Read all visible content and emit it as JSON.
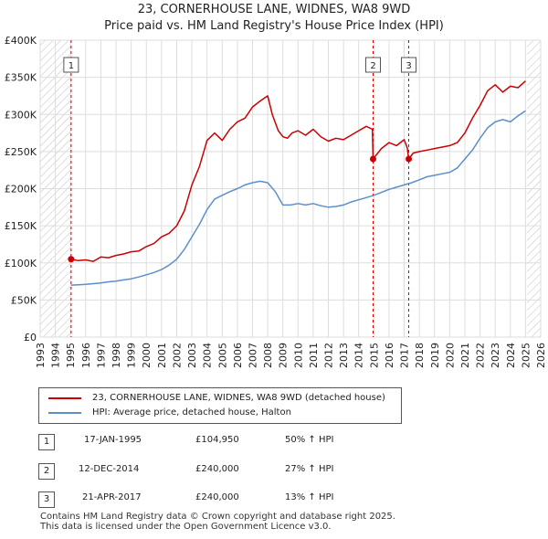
{
  "title_line1": "23, CORNERHOUSE LANE, WIDNES, WA8 9WD",
  "title_line2": "Price paid vs. HM Land Registry's House Price Index (HPI)",
  "legend": {
    "series1": "23, CORNERHOUSE LANE, WIDNES, WA8 9WD (detached house)",
    "series2": "HPI: Average price, detached house, Halton"
  },
  "sales": [
    {
      "num": "1",
      "date": "17-JAN-1995",
      "price": "£104,950",
      "hpi": "50% ↑ HPI"
    },
    {
      "num": "2",
      "date": "12-DEC-2014",
      "price": "£240,000",
      "hpi": "27% ↑ HPI"
    },
    {
      "num": "3",
      "date": "21-APR-2017",
      "price": "£240,000",
      "hpi": "13% ↑ HPI"
    }
  ],
  "footer": {
    "line1": "Contains HM Land Registry data © Crown copyright and database right 2025.",
    "line2": "This data is licensed under the Open Government Licence v3.0."
  },
  "colors": {
    "property": "#cc0000",
    "hpi": "#5b8fcc",
    "grid": "#dddddd",
    "vline": "#cc0000"
  },
  "chart_data": {
    "type": "line",
    "title": "23, CORNERHOUSE LANE, WIDNES, WA8 9WD",
    "subtitle": "Price paid vs. HM Land Registry's House Price Index (HPI)",
    "xlabel": "",
    "ylabel": "",
    "xlim": [
      1993,
      2026
    ],
    "ylim": [
      0,
      400000
    ],
    "x_ticks": [
      1993,
      1994,
      1995,
      1996,
      1997,
      1998,
      1999,
      2000,
      2001,
      2002,
      2003,
      2004,
      2005,
      2006,
      2007,
      2008,
      2009,
      2010,
      2011,
      2012,
      2013,
      2014,
      2015,
      2016,
      2017,
      2018,
      2019,
      2020,
      2021,
      2022,
      2023,
      2024,
      2025,
      2026
    ],
    "y_ticks": [
      {
        "v": 0,
        "label": "£0"
      },
      {
        "v": 50000,
        "label": "£50K"
      },
      {
        "v": 100000,
        "label": "£100K"
      },
      {
        "v": 150000,
        "label": "£150K"
      },
      {
        "v": 200000,
        "label": "£200K"
      },
      {
        "v": 250000,
        "label": "£250K"
      },
      {
        "v": 300000,
        "label": "£300K"
      },
      {
        "v": 350000,
        "label": "£350K"
      },
      {
        "v": 400000,
        "label": "£400K"
      }
    ],
    "hatched_ranges": [
      [
        1993,
        1995.04
      ],
      [
        2025.1,
        2026
      ]
    ],
    "sale_markers": [
      {
        "label": "1",
        "x": 1995.04,
        "y": 104950
      },
      {
        "label": "2",
        "x": 2014.95,
        "y": 240000
      },
      {
        "label": "3",
        "x": 2017.3,
        "y": 240000
      }
    ],
    "series": [
      {
        "name": "23, CORNERHOUSE LANE, WIDNES, WA8 9WD (detached house)",
        "color": "#cc0000",
        "x": [
          1995.04,
          1995.5,
          1996,
          1996.5,
          1997,
          1997.5,
          1998,
          1998.5,
          1999,
          1999.5,
          2000,
          2000.5,
          2001,
          2001.5,
          2002,
          2002.5,
          2003,
          2003.5,
          2004,
          2004.5,
          2005,
          2005.5,
          2006,
          2006.5,
          2007,
          2007.5,
          2008,
          2008.3,
          2008.7,
          2009,
          2009.3,
          2009.6,
          2010,
          2010.5,
          2011,
          2011.5,
          2012,
          2012.5,
          2013,
          2013.5,
          2014,
          2014.5,
          2014.9,
          2014.95,
          2015.5,
          2016,
          2016.5,
          2017,
          2017.2,
          2017.3,
          2017.6,
          2018,
          2018.5,
          2019,
          2019.5,
          2020,
          2020.5,
          2021,
          2021.5,
          2022,
          2022.5,
          2023,
          2023.5,
          2024,
          2024.5,
          2025
        ],
        "y": [
          104950,
          103000,
          104000,
          102000,
          108000,
          107000,
          110000,
          112000,
          115000,
          116000,
          122000,
          126000,
          135000,
          140000,
          150000,
          170000,
          205000,
          230000,
          265000,
          275000,
          265000,
          280000,
          290000,
          295000,
          310000,
          318000,
          325000,
          300000,
          278000,
          270000,
          268000,
          275000,
          278000,
          272000,
          280000,
          270000,
          264000,
          268000,
          266000,
          272000,
          278000,
          284000,
          280000,
          240000,
          254000,
          262000,
          258000,
          266000,
          255000,
          240000,
          248000,
          250000,
          252000,
          254000,
          256000,
          258000,
          262000,
          275000,
          295000,
          312000,
          332000,
          340000,
          330000,
          338000,
          336000,
          345000
        ]
      },
      {
        "name": "HPI: Average price, detached house, Halton",
        "color": "#5b8fcc",
        "x": [
          1995.04,
          1995.5,
          1996,
          1996.5,
          1997,
          1997.5,
          1998,
          1998.5,
          1999,
          1999.5,
          2000,
          2000.5,
          2001,
          2001.5,
          2002,
          2002.5,
          2003,
          2003.5,
          2004,
          2004.5,
          2005,
          2005.5,
          2006,
          2006.5,
          2007,
          2007.5,
          2008,
          2008.5,
          2009,
          2009.5,
          2010,
          2010.5,
          2011,
          2011.5,
          2012,
          2012.5,
          2013,
          2013.5,
          2014,
          2014.5,
          2015,
          2015.5,
          2016,
          2016.5,
          2017,
          2017.5,
          2018,
          2018.5,
          2019,
          2019.5,
          2020,
          2020.5,
          2021,
          2021.5,
          2022,
          2022.5,
          2023,
          2023.5,
          2024,
          2024.5,
          2025
        ],
        "y": [
          70000,
          70500,
          71000,
          72000,
          73000,
          74500,
          75500,
          77000,
          78500,
          81000,
          84000,
          87000,
          91000,
          97000,
          105000,
          118000,
          135000,
          152000,
          172000,
          186000,
          191000,
          196000,
          200000,
          205000,
          208000,
          210000,
          208000,
          196000,
          178000,
          178000,
          180000,
          178000,
          180000,
          177000,
          175000,
          176000,
          178000,
          182000,
          185000,
          188000,
          191000,
          195000,
          199000,
          202000,
          205000,
          208000,
          212000,
          216000,
          218000,
          220000,
          222000,
          228000,
          240000,
          252000,
          268000,
          282000,
          290000,
          293000,
          290000,
          298000,
          305000
        ]
      }
    ]
  }
}
